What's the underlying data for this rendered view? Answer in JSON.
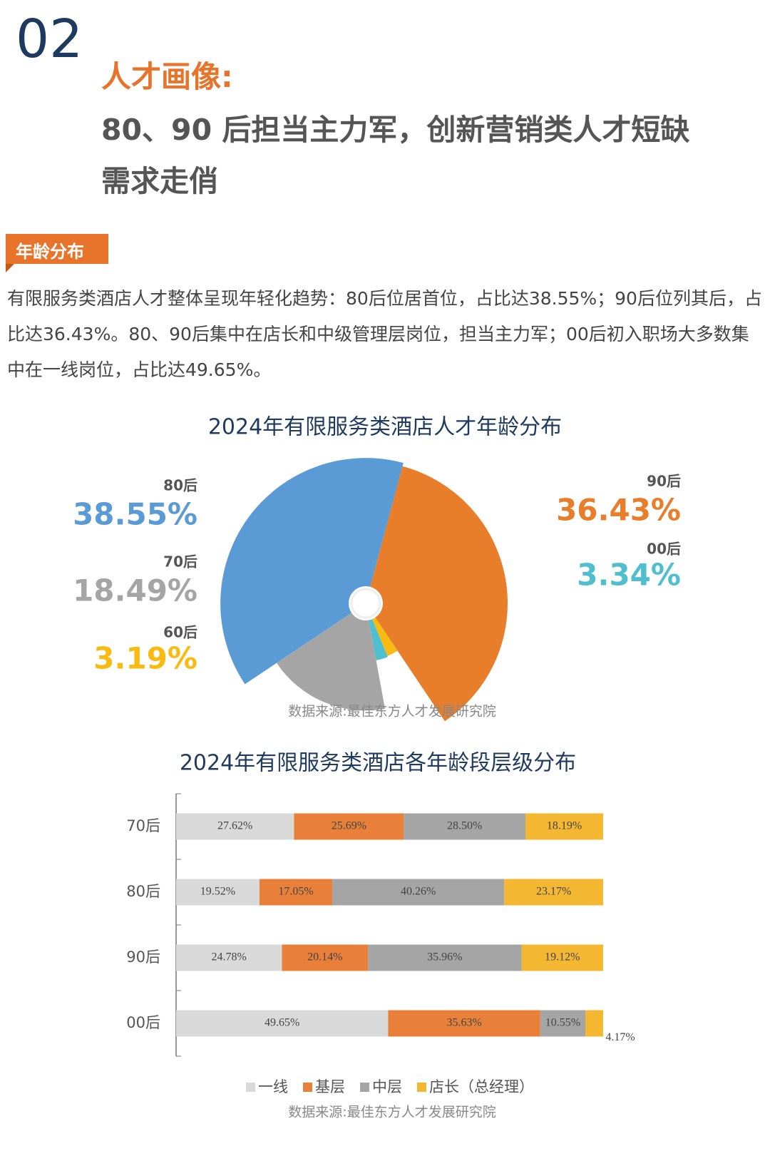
{
  "header": {
    "number": "02",
    "kicker": "人才画像:",
    "title_lines": [
      "80、90 后担当主力军，创新营销类人才短缺",
      "需求走俏"
    ]
  },
  "section": {
    "tag": "年龄分布",
    "paragraph": "有限服务类酒店人才整体呈现年轻化趋势：80后位居首位，占比达38.55%；90后位列其后，占比达36.43%。80、90后集中在店长和中级管理层岗位，担当主力军；00后初入职场大多数集中在一线岗位，占比达49.65%。"
  },
  "chart_data": [
    {
      "type": "pie",
      "title": "2024年有限服务类酒店人才年龄分布",
      "categories": [
        "90后",
        "60后",
        "00后",
        "70后",
        "80后"
      ],
      "values": [
        36.43,
        3.19,
        3.34,
        18.49,
        38.55
      ],
      "value_labels": [
        "36.43%",
        "3.19%",
        "3.34%",
        "18.49%",
        "38.55%"
      ],
      "colors": [
        "#e87d2a",
        "#f9bb12",
        "#4fbfcf",
        "#a5a5a5",
        "#5b9bd5"
      ],
      "source": "数据来源:最佳东方人才发展研究院"
    },
    {
      "type": "stacked-bar-horizontal",
      "title": "2024年有限服务类酒店各年龄段层级分布",
      "categories": [
        "70后",
        "80后",
        "90后",
        "00后"
      ],
      "xlim": [
        0,
        100
      ],
      "series": [
        {
          "name": "一线",
          "color": "#d9d9d9",
          "values": [
            27.62,
            19.52,
            24.78,
            49.65
          ],
          "value_labels": [
            "27.62%",
            "19.52%",
            "24.78%",
            "49.65%"
          ]
        },
        {
          "name": "基层",
          "color": "#e8803a",
          "values": [
            25.69,
            17.05,
            20.14,
            35.63
          ],
          "value_labels": [
            "25.69%",
            "17.05%",
            "20.14%",
            "35.63%"
          ]
        },
        {
          "name": "中层",
          "color": "#a5a5a5",
          "values": [
            28.5,
            40.26,
            35.96,
            10.55
          ],
          "value_labels": [
            "28.50%",
            "40.26%",
            "35.96%",
            "10.55%"
          ]
        },
        {
          "name": "店长（总经理）",
          "color": "#f4b731",
          "values": [
            18.19,
            23.17,
            19.12,
            4.17
          ],
          "value_labels": [
            "18.19%",
            "23.17%",
            "19.12%",
            "4.17%"
          ]
        }
      ],
      "legend": "bottom",
      "source": "数据来源:最佳东方人才发展研究院"
    }
  ]
}
